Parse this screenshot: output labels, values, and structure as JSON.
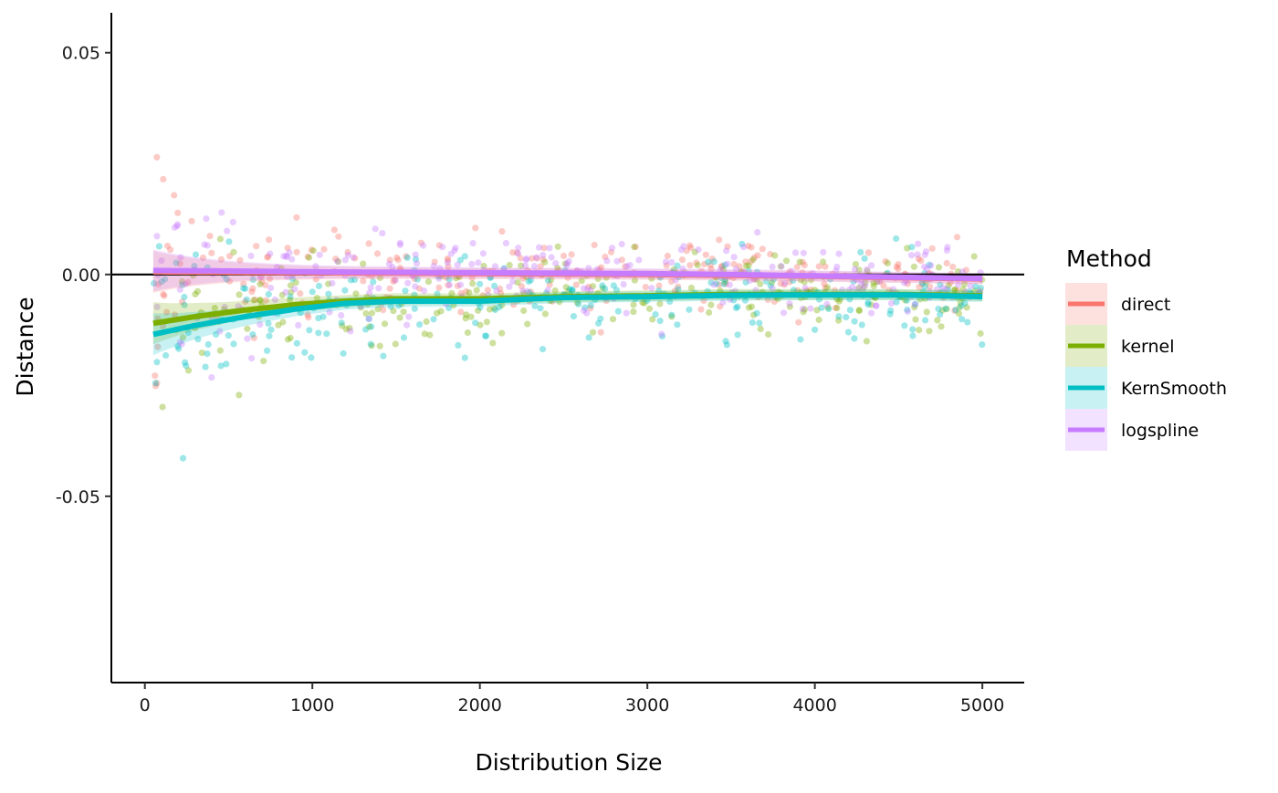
{
  "chart_data": {
    "type": "scatter",
    "title": "",
    "xlabel": "Distribution Size",
    "ylabel": "Distance",
    "xlim": [
      -200,
      5250
    ],
    "ylim": [
      -0.092,
      0.059
    ],
    "x_ticks": [
      0,
      1000,
      2000,
      3000,
      4000,
      5000
    ],
    "x_tick_labels": [
      "0",
      "1000",
      "2000",
      "3000",
      "4000",
      "5000"
    ],
    "y_ticks": [
      0.05,
      0.0,
      -0.05
    ],
    "y_tick_labels": [
      "0.05",
      "0.00",
      "-0.05"
    ],
    "reference_line_y": 0,
    "grid": false,
    "legend": {
      "title": "Method",
      "placement": "right",
      "entries": [
        "direct",
        "kernel",
        "KernSmooth",
        "logspline"
      ]
    },
    "series": [
      {
        "name": "direct",
        "color": "#F8766D",
        "points_per_series": 260,
        "smooth": {
          "x": [
            50,
            500,
            1000,
            1500,
            2000,
            2500,
            3000,
            3500,
            4000,
            4500,
            5000
          ],
          "y": [
            0.0006,
            0.0005,
            0.0004,
            0.0003,
            0.0002,
            0.0001,
            0.0,
            -0.0002,
            -0.0004,
            -0.0007,
            -0.001
          ]
        },
        "spread": 0.008
      },
      {
        "name": "kernel",
        "color": "#7CAE00",
        "points_per_series": 260,
        "smooth": {
          "x": [
            50,
            300,
            600,
            900,
            1200,
            1500,
            2000,
            2500,
            3000,
            3500,
            4000,
            4500,
            5000
          ],
          "y": [
            -0.011,
            -0.0095,
            -0.008,
            -0.0068,
            -0.006,
            -0.0055,
            -0.0055,
            -0.005,
            -0.0048,
            -0.0045,
            -0.0045,
            -0.0045,
            -0.0048
          ]
        },
        "spread": 0.009
      },
      {
        "name": "KernSmooth",
        "color": "#00BFC4",
        "points_per_series": 260,
        "smooth": {
          "x": [
            50,
            300,
            600,
            900,
            1200,
            1500,
            2000,
            2500,
            3000,
            3500,
            4000,
            4500,
            5000
          ],
          "y": [
            -0.0135,
            -0.0115,
            -0.0095,
            -0.0078,
            -0.0065,
            -0.006,
            -0.006,
            -0.0052,
            -0.005,
            -0.0047,
            -0.0046,
            -0.0046,
            -0.005
          ]
        },
        "spread": 0.009
      },
      {
        "name": "logspline",
        "color": "#C77CFF",
        "points_per_series": 260,
        "smooth": {
          "x": [
            50,
            500,
            1000,
            1500,
            2000,
            2500,
            3000,
            3500,
            4000,
            4500,
            5000
          ],
          "y": [
            0.0009,
            0.0008,
            0.0006,
            0.0005,
            0.0004,
            0.0003,
            0.0002,
            0.0,
            -0.0003,
            -0.0006,
            -0.0009
          ]
        },
        "spread": 0.008
      }
    ]
  }
}
